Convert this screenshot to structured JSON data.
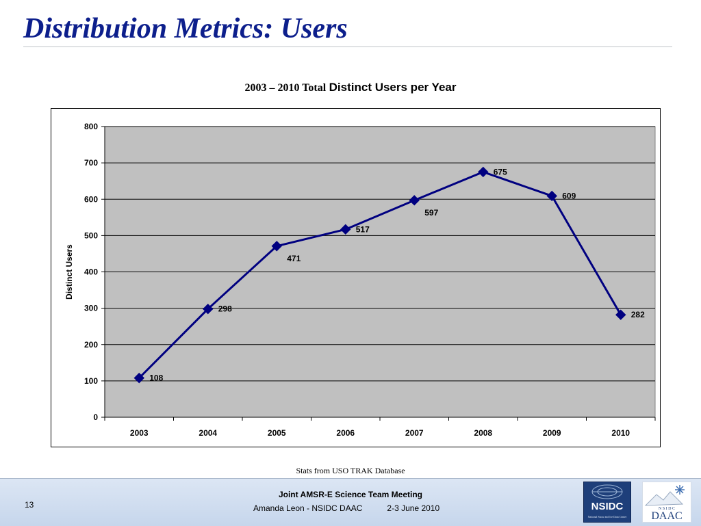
{
  "slide": {
    "title": "Distribution Metrics: Users",
    "source_note": "Stats from USO TRAK Database",
    "page_number": "13",
    "footer": {
      "meeting": "Joint AMSR-E Science Team Meeting",
      "presenter": "Amanda Leon - NSIDC DAAC",
      "date": "2-3 June 2010"
    },
    "logos": {
      "nsidc_text": "NSIDC",
      "nsidc_subtext": "National Snow and Ice Data Center",
      "daac_top": "N S I D C",
      "daac_text": "DAAC",
      "icons": [
        "globe-logo-icon",
        "snowflake-icon",
        "mountain-icon"
      ]
    }
  },
  "chart_data": {
    "type": "line",
    "title_part1": "2003 – 2010 Total",
    "title_part2": "Distinct Users per Year",
    "xlabel": "",
    "ylabel": "Distinct Users",
    "categories": [
      "2003",
      "2004",
      "2005",
      "2006",
      "2007",
      "2008",
      "2009",
      "2010"
    ],
    "series": [
      {
        "values": [
          108,
          298,
          471,
          517,
          597,
          675,
          609,
          282
        ],
        "color": "#000080",
        "marker": "diamond"
      }
    ],
    "ylim": [
      0,
      800
    ],
    "yticks": [
      0,
      100,
      200,
      300,
      400,
      500,
      600,
      700,
      800
    ],
    "grid": true,
    "legend": "none",
    "plot_background": "#c0c0c0"
  }
}
